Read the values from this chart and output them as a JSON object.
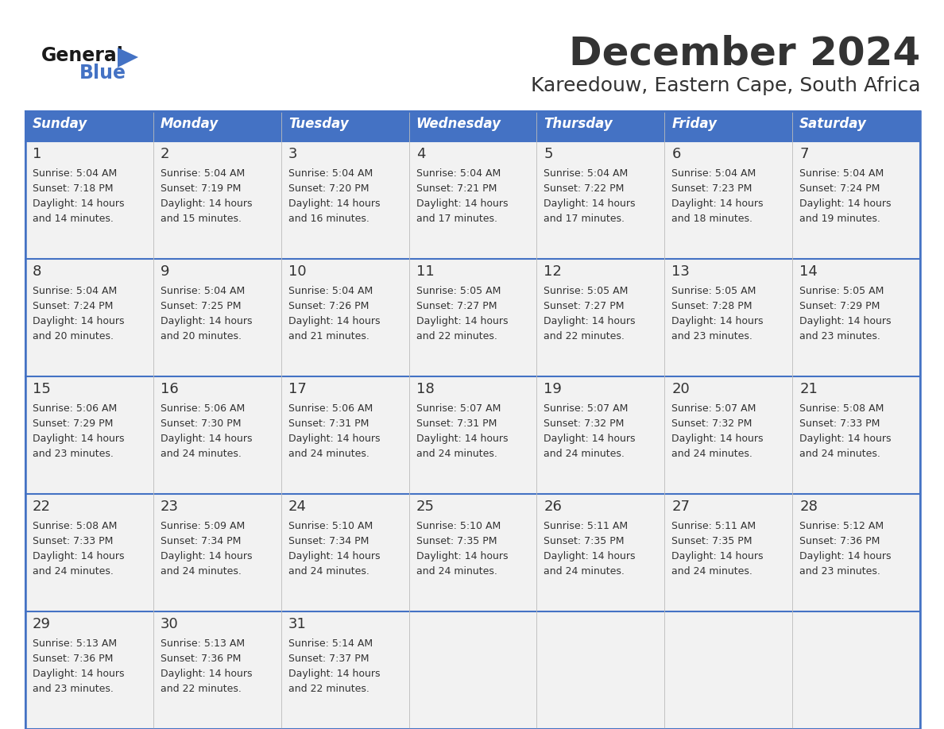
{
  "title": "December 2024",
  "subtitle": "Kareedouw, Eastern Cape, South Africa",
  "header_color": "#4472C4",
  "header_text_color": "#FFFFFF",
  "day_names": [
    "Sunday",
    "Monday",
    "Tuesday",
    "Wednesday",
    "Thursday",
    "Friday",
    "Saturday"
  ],
  "background_color": "#FFFFFF",
  "cell_bg_color": "#F2F2F2",
  "border_color": "#4472C4",
  "text_color": "#333333",
  "days": [
    {
      "day": 1,
      "col": 0,
      "row": 0,
      "sunrise": "5:04 AM",
      "sunset": "7:18 PM",
      "daylight_hours": 14,
      "daylight_minutes": 14
    },
    {
      "day": 2,
      "col": 1,
      "row": 0,
      "sunrise": "5:04 AM",
      "sunset": "7:19 PM",
      "daylight_hours": 14,
      "daylight_minutes": 15
    },
    {
      "day": 3,
      "col": 2,
      "row": 0,
      "sunrise": "5:04 AM",
      "sunset": "7:20 PM",
      "daylight_hours": 14,
      "daylight_minutes": 16
    },
    {
      "day": 4,
      "col": 3,
      "row": 0,
      "sunrise": "5:04 AM",
      "sunset": "7:21 PM",
      "daylight_hours": 14,
      "daylight_minutes": 17
    },
    {
      "day": 5,
      "col": 4,
      "row": 0,
      "sunrise": "5:04 AM",
      "sunset": "7:22 PM",
      "daylight_hours": 14,
      "daylight_minutes": 17
    },
    {
      "day": 6,
      "col": 5,
      "row": 0,
      "sunrise": "5:04 AM",
      "sunset": "7:23 PM",
      "daylight_hours": 14,
      "daylight_minutes": 18
    },
    {
      "day": 7,
      "col": 6,
      "row": 0,
      "sunrise": "5:04 AM",
      "sunset": "7:24 PM",
      "daylight_hours": 14,
      "daylight_minutes": 19
    },
    {
      "day": 8,
      "col": 0,
      "row": 1,
      "sunrise": "5:04 AM",
      "sunset": "7:24 PM",
      "daylight_hours": 14,
      "daylight_minutes": 20
    },
    {
      "day": 9,
      "col": 1,
      "row": 1,
      "sunrise": "5:04 AM",
      "sunset": "7:25 PM",
      "daylight_hours": 14,
      "daylight_minutes": 20
    },
    {
      "day": 10,
      "col": 2,
      "row": 1,
      "sunrise": "5:04 AM",
      "sunset": "7:26 PM",
      "daylight_hours": 14,
      "daylight_minutes": 21
    },
    {
      "day": 11,
      "col": 3,
      "row": 1,
      "sunrise": "5:05 AM",
      "sunset": "7:27 PM",
      "daylight_hours": 14,
      "daylight_minutes": 22
    },
    {
      "day": 12,
      "col": 4,
      "row": 1,
      "sunrise": "5:05 AM",
      "sunset": "7:27 PM",
      "daylight_hours": 14,
      "daylight_minutes": 22
    },
    {
      "day": 13,
      "col": 5,
      "row": 1,
      "sunrise": "5:05 AM",
      "sunset": "7:28 PM",
      "daylight_hours": 14,
      "daylight_minutes": 23
    },
    {
      "day": 14,
      "col": 6,
      "row": 1,
      "sunrise": "5:05 AM",
      "sunset": "7:29 PM",
      "daylight_hours": 14,
      "daylight_minutes": 23
    },
    {
      "day": 15,
      "col": 0,
      "row": 2,
      "sunrise": "5:06 AM",
      "sunset": "7:29 PM",
      "daylight_hours": 14,
      "daylight_minutes": 23
    },
    {
      "day": 16,
      "col": 1,
      "row": 2,
      "sunrise": "5:06 AM",
      "sunset": "7:30 PM",
      "daylight_hours": 14,
      "daylight_minutes": 24
    },
    {
      "day": 17,
      "col": 2,
      "row": 2,
      "sunrise": "5:06 AM",
      "sunset": "7:31 PM",
      "daylight_hours": 14,
      "daylight_minutes": 24
    },
    {
      "day": 18,
      "col": 3,
      "row": 2,
      "sunrise": "5:07 AM",
      "sunset": "7:31 PM",
      "daylight_hours": 14,
      "daylight_minutes": 24
    },
    {
      "day": 19,
      "col": 4,
      "row": 2,
      "sunrise": "5:07 AM",
      "sunset": "7:32 PM",
      "daylight_hours": 14,
      "daylight_minutes": 24
    },
    {
      "day": 20,
      "col": 5,
      "row": 2,
      "sunrise": "5:07 AM",
      "sunset": "7:32 PM",
      "daylight_hours": 14,
      "daylight_minutes": 24
    },
    {
      "day": 21,
      "col": 6,
      "row": 2,
      "sunrise": "5:08 AM",
      "sunset": "7:33 PM",
      "daylight_hours": 14,
      "daylight_minutes": 24
    },
    {
      "day": 22,
      "col": 0,
      "row": 3,
      "sunrise": "5:08 AM",
      "sunset": "7:33 PM",
      "daylight_hours": 14,
      "daylight_minutes": 24
    },
    {
      "day": 23,
      "col": 1,
      "row": 3,
      "sunrise": "5:09 AM",
      "sunset": "7:34 PM",
      "daylight_hours": 14,
      "daylight_minutes": 24
    },
    {
      "day": 24,
      "col": 2,
      "row": 3,
      "sunrise": "5:10 AM",
      "sunset": "7:34 PM",
      "daylight_hours": 14,
      "daylight_minutes": 24
    },
    {
      "day": 25,
      "col": 3,
      "row": 3,
      "sunrise": "5:10 AM",
      "sunset": "7:35 PM",
      "daylight_hours": 14,
      "daylight_minutes": 24
    },
    {
      "day": 26,
      "col": 4,
      "row": 3,
      "sunrise": "5:11 AM",
      "sunset": "7:35 PM",
      "daylight_hours": 14,
      "daylight_minutes": 24
    },
    {
      "day": 27,
      "col": 5,
      "row": 3,
      "sunrise": "5:11 AM",
      "sunset": "7:35 PM",
      "daylight_hours": 14,
      "daylight_minutes": 24
    },
    {
      "day": 28,
      "col": 6,
      "row": 3,
      "sunrise": "5:12 AM",
      "sunset": "7:36 PM",
      "daylight_hours": 14,
      "daylight_minutes": 23
    },
    {
      "day": 29,
      "col": 0,
      "row": 4,
      "sunrise": "5:13 AM",
      "sunset": "7:36 PM",
      "daylight_hours": 14,
      "daylight_minutes": 23
    },
    {
      "day": 30,
      "col": 1,
      "row": 4,
      "sunrise": "5:13 AM",
      "sunset": "7:36 PM",
      "daylight_hours": 14,
      "daylight_minutes": 22
    },
    {
      "day": 31,
      "col": 2,
      "row": 4,
      "sunrise": "5:14 AM",
      "sunset": "7:37 PM",
      "daylight_hours": 14,
      "daylight_minutes": 22
    }
  ],
  "logo_text_general": "General",
  "logo_text_blue": "Blue",
  "logo_color_general": "#1a1a1a",
  "logo_color_blue": "#4472C4",
  "fig_width": 11.88,
  "fig_height": 9.18,
  "dpi": 100
}
